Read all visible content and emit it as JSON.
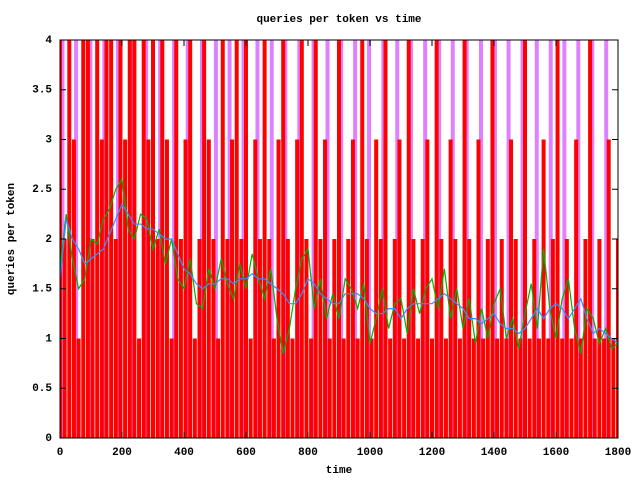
{
  "chart_data": {
    "type": "line",
    "title": "queries per token vs time",
    "xlabel": "time",
    "ylabel": "queries per token",
    "xlim": [
      0,
      1800
    ],
    "ylim": [
      0,
      4
    ],
    "xticks": [
      0,
      200,
      400,
      600,
      800,
      1000,
      1200,
      1400,
      1600,
      1800
    ],
    "yticks": [
      0,
      0.5,
      1,
      1.5,
      2,
      2.5,
      3,
      3.5,
      4
    ],
    "grid": false,
    "series": [
      {
        "style": "impulses",
        "color": "#e080ff",
        "x": [
          8,
          52,
          98,
          143,
          187,
          232,
          278,
          323,
          368,
          412,
          458,
          503,
          547,
          592,
          637,
          683,
          727,
          772,
          818,
          863,
          907,
          952,
          997,
          1043,
          1088,
          1132,
          1178,
          1223,
          1267,
          1312,
          1358,
          1403,
          1447,
          1492,
          1538,
          1583,
          1627,
          1672,
          1717,
          1762
        ],
        "values": [
          4,
          4,
          4,
          4,
          4,
          4,
          4,
          4,
          4,
          4,
          4,
          4,
          4,
          4,
          4,
          4,
          4,
          4,
          4,
          4,
          4,
          4,
          4,
          4,
          4,
          4,
          4,
          4,
          4,
          4,
          4,
          4,
          4,
          4,
          4,
          4,
          4,
          4,
          4,
          4
        ]
      },
      {
        "style": "impulses",
        "color": "#ff0000",
        "x": [
          0,
          15,
          30,
          45,
          60,
          75,
          90,
          105,
          120,
          135,
          150,
          165,
          180,
          195,
          210,
          225,
          240,
          255,
          270,
          285,
          300,
          315,
          330,
          345,
          360,
          375,
          390,
          405,
          420,
          435,
          450,
          465,
          480,
          495,
          510,
          525,
          540,
          555,
          570,
          585,
          600,
          615,
          630,
          645,
          660,
          675,
          690,
          705,
          720,
          735,
          750,
          765,
          780,
          795,
          810,
          825,
          840,
          855,
          870,
          885,
          900,
          915,
          930,
          945,
          960,
          975,
          990,
          1005,
          1020,
          1035,
          1050,
          1065,
          1080,
          1095,
          1110,
          1125,
          1140,
          1155,
          1170,
          1185,
          1200,
          1215,
          1230,
          1245,
          1260,
          1275,
          1290,
          1305,
          1320,
          1335,
          1350,
          1365,
          1380,
          1395,
          1410,
          1425,
          1440,
          1455,
          1470,
          1485,
          1500,
          1515,
          1530,
          1545,
          1560,
          1575,
          1590,
          1605,
          1620,
          1635,
          1650,
          1665,
          1680,
          1695,
          1710,
          1725,
          1740,
          1755,
          1770,
          1785,
          1800
        ],
        "values": [
          4,
          2,
          4,
          3,
          1,
          4,
          4,
          2,
          4,
          3,
          4,
          4,
          2,
          4,
          3,
          4,
          4,
          1,
          4,
          3,
          4,
          2,
          4,
          3,
          1,
          4,
          2,
          3,
          4,
          1,
          2,
          4,
          3,
          2,
          1,
          4,
          2,
          3,
          4,
          2,
          4,
          1,
          3,
          2,
          4,
          2,
          1,
          3,
          4,
          2,
          1,
          3,
          4,
          2,
          1,
          4,
          2,
          3,
          1,
          2,
          4,
          1,
          2,
          3,
          1,
          4,
          2,
          1,
          3,
          2,
          4,
          1,
          2,
          3,
          1,
          4,
          2,
          1,
          2,
          3,
          1,
          4,
          2,
          1,
          3,
          2,
          1,
          4,
          2,
          1,
          3,
          1,
          2,
          4,
          1,
          2,
          1,
          3,
          2,
          1,
          4,
          1,
          2,
          1,
          3,
          1,
          2,
          4,
          1,
          2,
          1,
          3,
          1,
          2,
          4,
          1,
          2,
          1,
          3,
          1,
          2
        ]
      },
      {
        "style": "lines",
        "color": "#00b000",
        "x": [
          0,
          20,
          40,
          60,
          80,
          100,
          120,
          140,
          160,
          180,
          200,
          220,
          240,
          260,
          280,
          300,
          320,
          340,
          360,
          380,
          400,
          420,
          440,
          460,
          480,
          500,
          520,
          540,
          560,
          580,
          600,
          620,
          640,
          660,
          680,
          700,
          720,
          740,
          760,
          780,
          800,
          820,
          840,
          860,
          880,
          900,
          920,
          940,
          960,
          980,
          1000,
          1020,
          1040,
          1060,
          1080,
          1100,
          1120,
          1140,
          1160,
          1180,
          1200,
          1220,
          1240,
          1260,
          1280,
          1300,
          1320,
          1340,
          1360,
          1380,
          1400,
          1420,
          1440,
          1460,
          1480,
          1500,
          1520,
          1540,
          1560,
          1580,
          1600,
          1620,
          1640,
          1660,
          1680,
          1700,
          1720,
          1740,
          1760,
          1780,
          1800
        ],
        "values": [
          1.7,
          2.25,
          1.8,
          1.5,
          1.6,
          2.0,
          1.95,
          2.2,
          2.3,
          2.5,
          2.6,
          2.1,
          2.0,
          2.25,
          2.2,
          1.9,
          2.1,
          1.75,
          2.0,
          1.6,
          1.5,
          1.8,
          1.35,
          1.3,
          1.7,
          1.5,
          1.8,
          1.55,
          1.4,
          1.75,
          1.5,
          1.85,
          1.6,
          1.4,
          1.7,
          1.2,
          0.85,
          1.1,
          1.5,
          1.8,
          1.9,
          1.3,
          1.6,
          1.2,
          1.45,
          1.2,
          1.6,
          1.5,
          1.3,
          1.55,
          0.95,
          1.2,
          1.5,
          1.1,
          1.35,
          1.4,
          1.05,
          1.5,
          1.25,
          1.5,
          1.6,
          1.3,
          1.7,
          1.2,
          1.5,
          1.1,
          1.4,
          0.95,
          1.3,
          1.0,
          1.35,
          1.5,
          1.0,
          1.2,
          0.9,
          1.25,
          1.55,
          1.1,
          1.9,
          1.3,
          1.0,
          1.4,
          1.6,
          1.1,
          0.85,
          1.3,
          1.2,
          0.95,
          1.1,
          0.9,
          0.95
        ]
      },
      {
        "style": "lines",
        "color": "#3090ff",
        "x": [
          0,
          20,
          40,
          60,
          80,
          100,
          120,
          140,
          160,
          180,
          200,
          220,
          240,
          260,
          280,
          300,
          320,
          340,
          360,
          380,
          400,
          420,
          440,
          460,
          480,
          500,
          520,
          540,
          560,
          580,
          600,
          620,
          640,
          660,
          680,
          700,
          720,
          740,
          760,
          780,
          800,
          820,
          840,
          860,
          880,
          900,
          920,
          940,
          960,
          980,
          1000,
          1020,
          1040,
          1060,
          1080,
          1100,
          1120,
          1140,
          1160,
          1180,
          1200,
          1220,
          1240,
          1260,
          1280,
          1300,
          1320,
          1340,
          1360,
          1380,
          1400,
          1420,
          1440,
          1460,
          1480,
          1500,
          1520,
          1540,
          1560,
          1580,
          1600,
          1620,
          1640,
          1660,
          1680,
          1700,
          1720,
          1740,
          1760,
          1780,
          1800
        ],
        "values": [
          1.6,
          2.2,
          2.0,
          1.9,
          1.75,
          1.8,
          1.85,
          1.9,
          2.05,
          2.2,
          2.35,
          2.25,
          2.15,
          2.15,
          2.1,
          2.1,
          2.05,
          2.0,
          2.0,
          1.85,
          1.7,
          1.65,
          1.55,
          1.5,
          1.55,
          1.55,
          1.6,
          1.6,
          1.55,
          1.6,
          1.6,
          1.65,
          1.6,
          1.6,
          1.55,
          1.5,
          1.45,
          1.35,
          1.35,
          1.45,
          1.6,
          1.55,
          1.45,
          1.4,
          1.35,
          1.35,
          1.45,
          1.45,
          1.45,
          1.4,
          1.3,
          1.25,
          1.25,
          1.3,
          1.3,
          1.2,
          1.3,
          1.35,
          1.35,
          1.35,
          1.35,
          1.4,
          1.45,
          1.4,
          1.35,
          1.3,
          1.2,
          1.2,
          1.15,
          1.2,
          1.25,
          1.15,
          1.1,
          1.1,
          1.05,
          1.1,
          1.2,
          1.3,
          1.2,
          1.3,
          1.35,
          1.3,
          1.2,
          1.3,
          1.4,
          1.2,
          1.05,
          1.1,
          1.05,
          1.0,
          0.95
        ]
      }
    ]
  }
}
